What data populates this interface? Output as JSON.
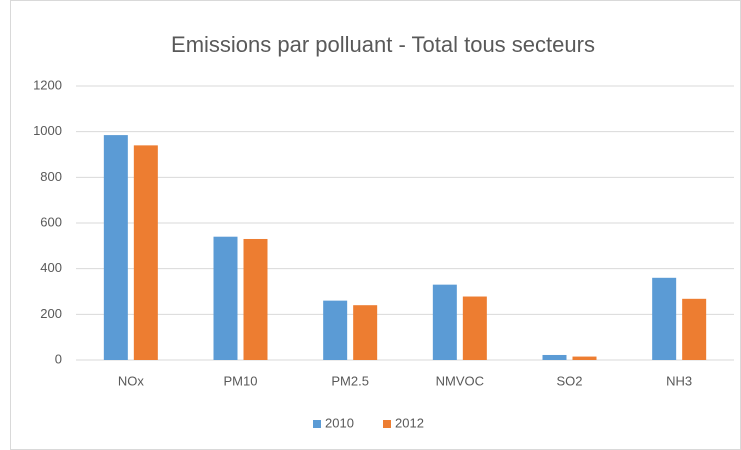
{
  "chart_data": {
    "type": "bar",
    "title": "Emissions par polluant - Total tous secteurs",
    "categories": [
      "NOx",
      "PM10",
      "PM2.5",
      "NMVOC",
      "SO2",
      "NH3"
    ],
    "series": [
      {
        "name": "2010",
        "color": "#5b9bd5",
        "values": [
          985,
          540,
          260,
          330,
          22,
          360
        ]
      },
      {
        "name": "2012",
        "color": "#ed7d31",
        "values": [
          940,
          530,
          240,
          278,
          15,
          268
        ]
      }
    ],
    "ylim": [
      0,
      1200
    ],
    "yticks": [
      0,
      200,
      400,
      600,
      800,
      1000,
      1200
    ],
    "grid": true,
    "legend": "bottom"
  }
}
